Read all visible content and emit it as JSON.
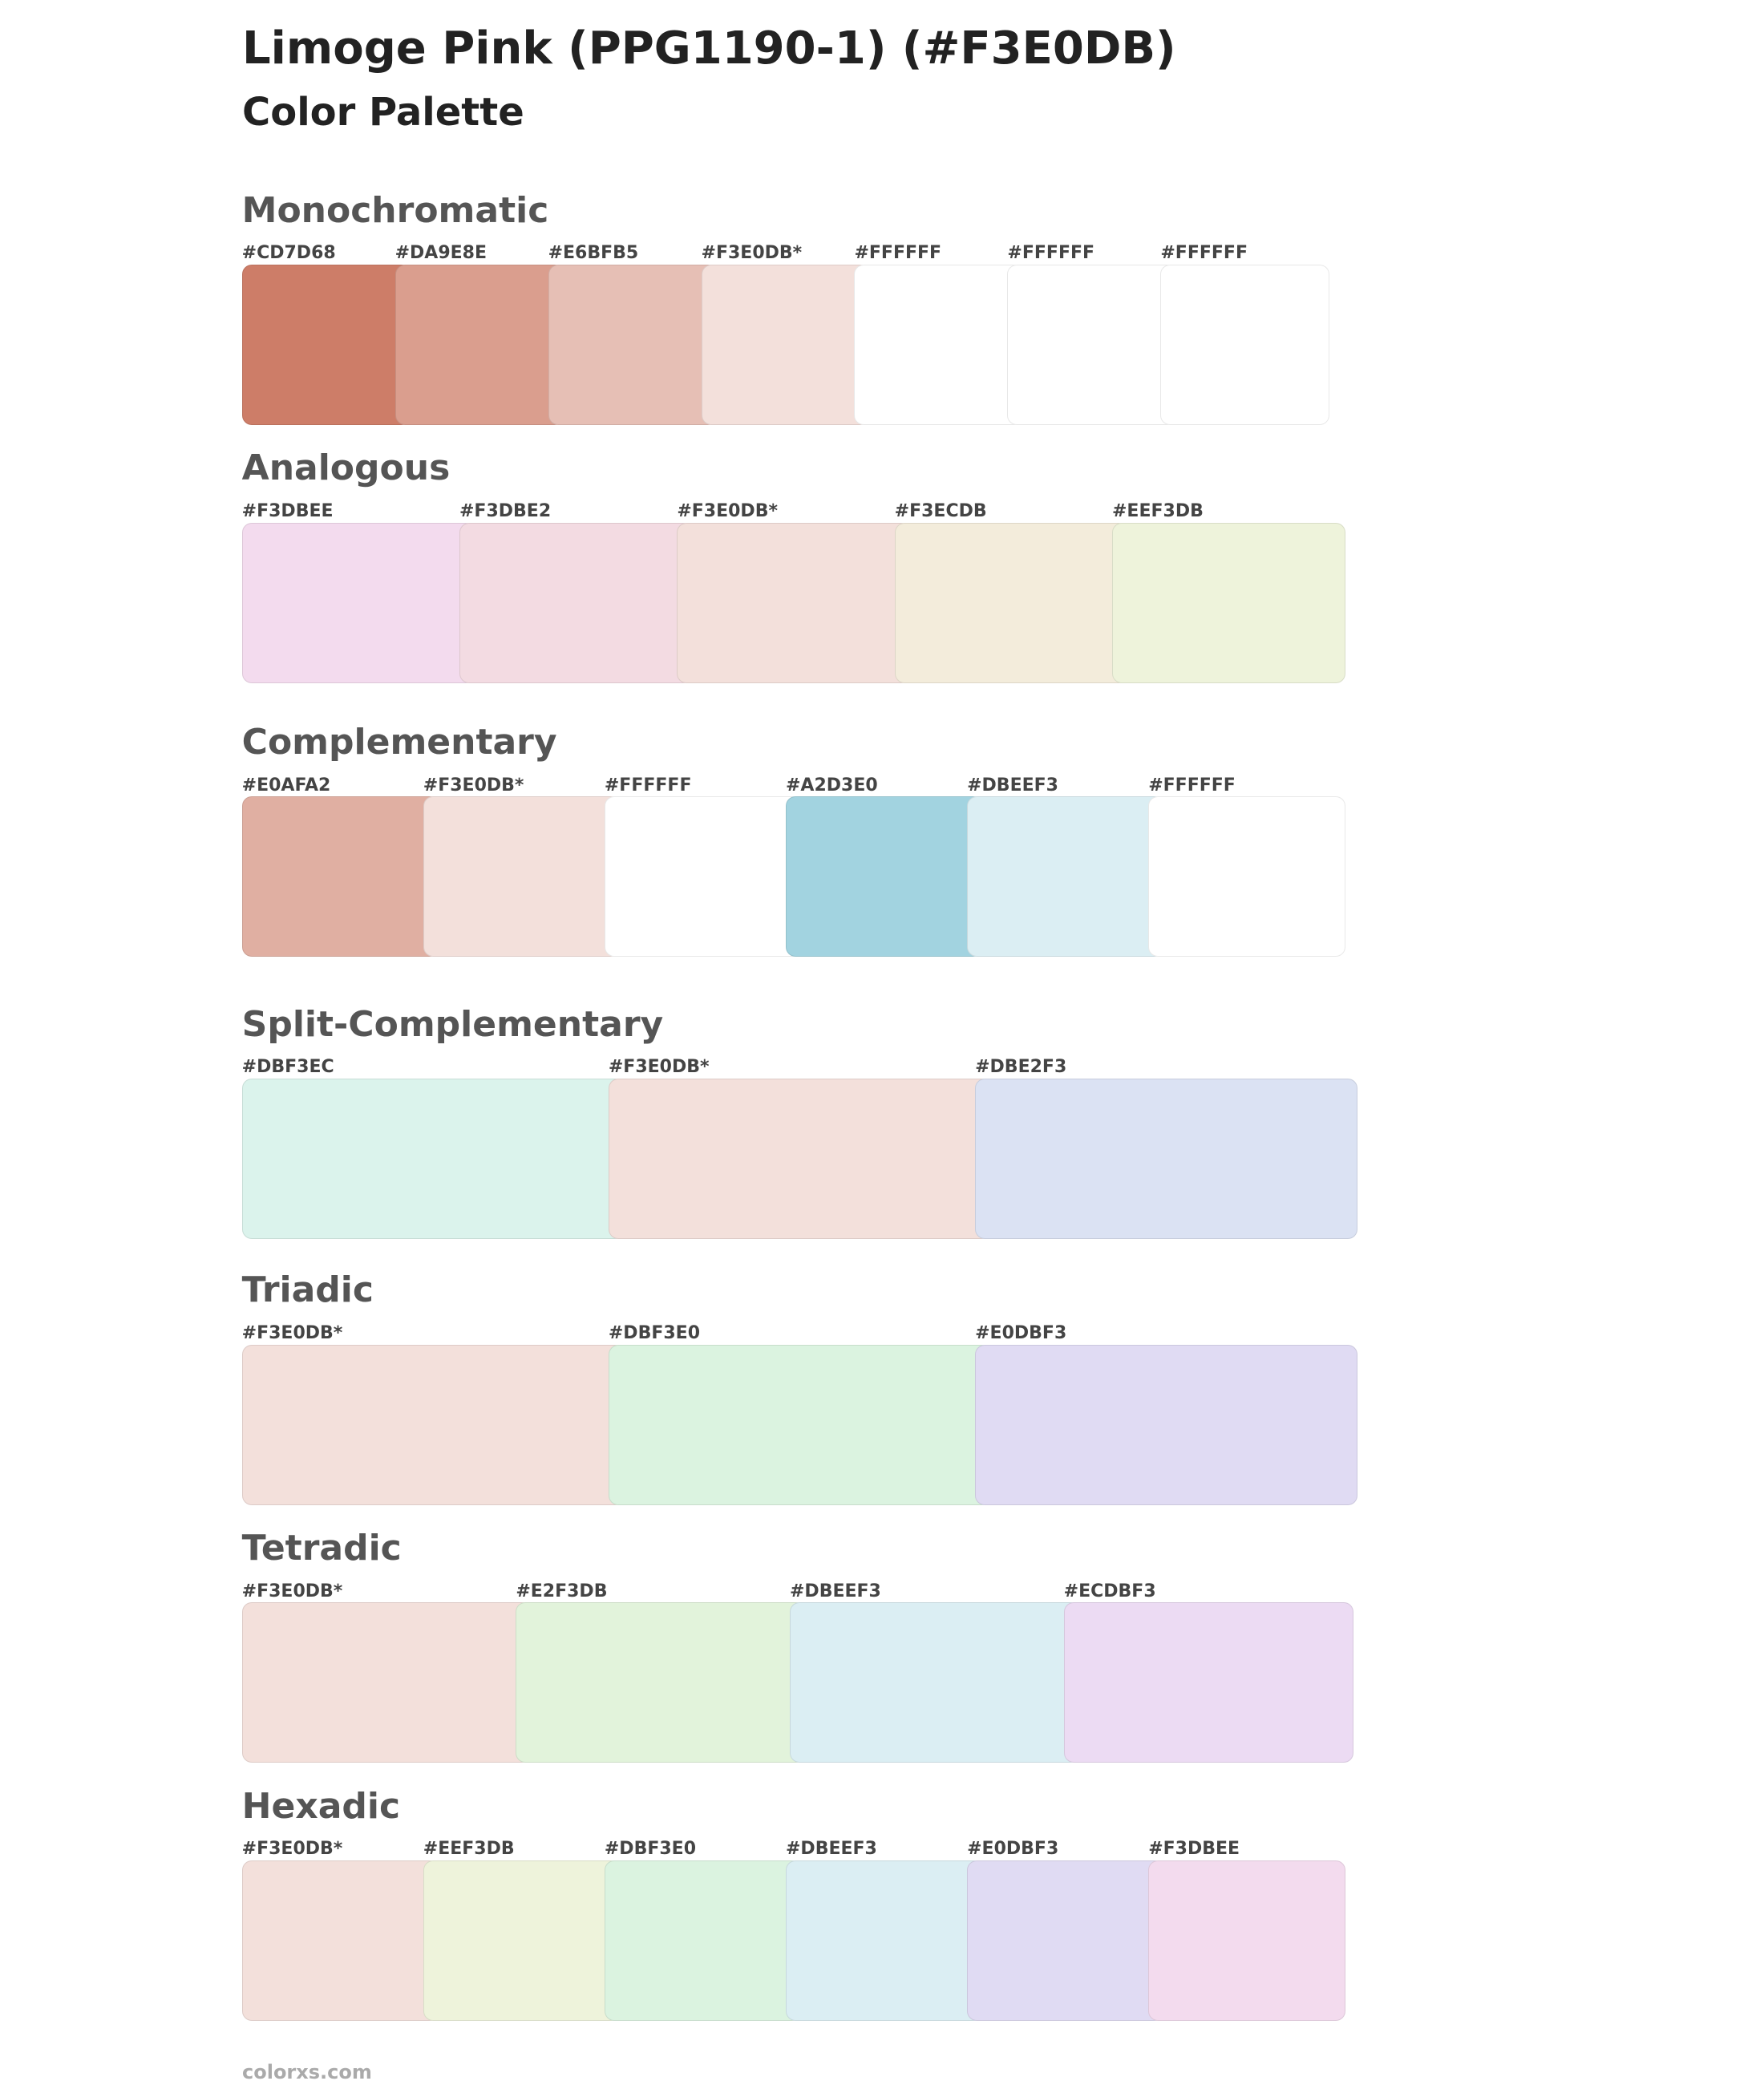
{
  "header": {
    "title": "Limoge Pink (PPG1190-1) (#F3E0DB)",
    "subtitle": "Color Palette"
  },
  "sections": [
    {
      "title": "Monochromatic",
      "swatches": [
        {
          "label": "#CD7D68",
          "color": "#CD7D68"
        },
        {
          "label": "#DA9E8E",
          "color": "#DA9E8E"
        },
        {
          "label": "#E6BFB5",
          "color": "#E6BFB5"
        },
        {
          "label": "#F3E0DB*",
          "color": "#F3E0DB"
        },
        {
          "label": "#FFFFFF",
          "color": "#FFFFFF"
        },
        {
          "label": "#FFFFFF",
          "color": "#FFFFFF"
        },
        {
          "label": "#FFFFFF",
          "color": "#FFFFFF"
        }
      ]
    },
    {
      "title": "Analogous",
      "swatches": [
        {
          "label": "#F3DBEE",
          "color": "#F3DBEE"
        },
        {
          "label": "#F3DBE2",
          "color": "#F3DBE2"
        },
        {
          "label": "#F3E0DB*",
          "color": "#F3E0DB"
        },
        {
          "label": "#F3ECDB",
          "color": "#F3ECDB"
        },
        {
          "label": "#EEF3DB",
          "color": "#EEF3DB"
        }
      ]
    },
    {
      "title": "Complementary",
      "swatches": [
        {
          "label": "#E0AFA2",
          "color": "#E0AFA2"
        },
        {
          "label": "#F3E0DB*",
          "color": "#F3E0DB"
        },
        {
          "label": "#FFFFFF",
          "color": "#FFFFFF"
        },
        {
          "label": "#A2D3E0",
          "color": "#A2D3E0"
        },
        {
          "label": "#DBEEF3",
          "color": "#DBEEF3"
        },
        {
          "label": "#FFFFFF",
          "color": "#FFFFFF"
        }
      ]
    },
    {
      "title": "Split-Complementary",
      "swatches": [
        {
          "label": "#DBF3EC",
          "color": "#DBF3EC"
        },
        {
          "label": "#F3E0DB*",
          "color": "#F3E0DB"
        },
        {
          "label": "#DBE2F3",
          "color": "#DBE2F3"
        }
      ]
    },
    {
      "title": "Triadic",
      "swatches": [
        {
          "label": "#F3E0DB*",
          "color": "#F3E0DB"
        },
        {
          "label": "#DBF3E0",
          "color": "#DBF3E0"
        },
        {
          "label": "#E0DBF3",
          "color": "#E0DBF3"
        }
      ]
    },
    {
      "title": "Tetradic",
      "swatches": [
        {
          "label": "#F3E0DB*",
          "color": "#F3E0DB"
        },
        {
          "label": "#E2F3DB",
          "color": "#E2F3DB"
        },
        {
          "label": "#DBEEF3",
          "color": "#DBEEF3"
        },
        {
          "label": "#ECDBF3",
          "color": "#ECDBF3"
        }
      ]
    },
    {
      "title": "Hexadic",
      "swatches": [
        {
          "label": "#F3E0DB*",
          "color": "#F3E0DB"
        },
        {
          "label": "#EEF3DB",
          "color": "#EEF3DB"
        },
        {
          "label": "#DBF3E0",
          "color": "#DBF3E0"
        },
        {
          "label": "#DBEEF3",
          "color": "#DBEEF3"
        },
        {
          "label": "#E0DBF3",
          "color": "#E0DBF3"
        },
        {
          "label": "#F3DBEE",
          "color": "#F3DBEE"
        }
      ]
    }
  ],
  "footer": "colorxs.com"
}
